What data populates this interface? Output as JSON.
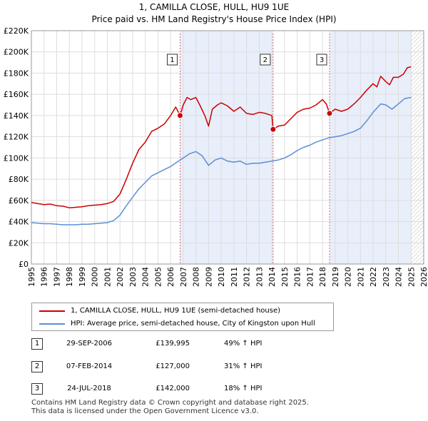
{
  "chart_data": {
    "type": "line",
    "title": "1, CAMILLA CLOSE, HULL, HU9 1UE",
    "subtitle": "Price paid vs. HM Land Registry's House Price Index (HPI)",
    "xlabel": "",
    "ylabel": "",
    "xlim": [
      1995,
      2026
    ],
    "ylim": [
      0,
      220000
    ],
    "x_ticks": [
      "1995",
      "1996",
      "1997",
      "1998",
      "1999",
      "2000",
      "2001",
      "2002",
      "2003",
      "2004",
      "2005",
      "2006",
      "2007",
      "2008",
      "2009",
      "2010",
      "2011",
      "2012",
      "2013",
      "2014",
      "2015",
      "2016",
      "2017",
      "2018",
      "2019",
      "2020",
      "2021",
      "2022",
      "2023",
      "2024",
      "2025",
      "2026"
    ],
    "y_ticks": [
      {
        "value": 0,
        "label": "£0"
      },
      {
        "value": 20000,
        "label": "£20K"
      },
      {
        "value": 40000,
        "label": "£40K"
      },
      {
        "value": 60000,
        "label": "£60K"
      },
      {
        "value": 80000,
        "label": "£80K"
      },
      {
        "value": 100000,
        "label": "£100K"
      },
      {
        "value": 120000,
        "label": "£120K"
      },
      {
        "value": 140000,
        "label": "£140K"
      },
      {
        "value": 160000,
        "label": "£160K"
      },
      {
        "value": 180000,
        "label": "£180K"
      },
      {
        "value": 200000,
        "label": "£200K"
      },
      {
        "value": 220000,
        "label": "£220K"
      }
    ],
    "grid": true,
    "shaded_periods": [
      [
        2006.75,
        2014.1
      ],
      [
        2018.56,
        2025.0
      ]
    ],
    "forecast_hatch_from": 2025.0,
    "series": [
      {
        "name": "1, CAMILLA CLOSE, HULL, HU9 1UE (semi-detached house)",
        "color": "#cc0000",
        "x": [
          1995.0,
          1995.5,
          1996.0,
          1996.5,
          1997.0,
          1997.5,
          1998.0,
          1998.5,
          1999.0,
          1999.5,
          2000.0,
          2000.5,
          2001.0,
          2001.5,
          2002.0,
          2002.5,
          2003.0,
          2003.5,
          2004.0,
          2004.5,
          2005.0,
          2005.5,
          2006.0,
          2006.4,
          2006.75,
          2007.0,
          2007.3,
          2007.6,
          2008.0,
          2008.3,
          2008.7,
          2009.0,
          2009.3,
          2009.7,
          2010.0,
          2010.5,
          2011.0,
          2011.5,
          2012.0,
          2012.5,
          2013.0,
          2013.5,
          2014.0,
          2014.1,
          2014.5,
          2015.0,
          2015.5,
          2016.0,
          2016.5,
          2017.0,
          2017.5,
          2018.0,
          2018.3,
          2018.56,
          2019.0,
          2019.5,
          2020.0,
          2020.5,
          2021.0,
          2021.5,
          2022.0,
          2022.3,
          2022.6,
          2023.0,
          2023.3,
          2023.6,
          2024.0,
          2024.4,
          2024.7,
          2025.0
        ],
        "values": [
          58000,
          57000,
          56000,
          56500,
          55000,
          54500,
          53000,
          53500,
          54000,
          55000,
          55500,
          56000,
          57000,
          59000,
          66000,
          80000,
          95000,
          108000,
          115000,
          125000,
          128000,
          132000,
          140000,
          148000,
          139995,
          150000,
          157000,
          155000,
          157000,
          150000,
          140000,
          130000,
          146000,
          150000,
          152000,
          149000,
          144000,
          148000,
          142000,
          141000,
          143000,
          142000,
          140000,
          127000,
          130000,
          131000,
          137000,
          143000,
          146000,
          147000,
          150000,
          155000,
          151000,
          142000,
          146000,
          144000,
          146000,
          151000,
          157000,
          164000,
          170000,
          167000,
          177000,
          172000,
          169000,
          176000,
          176000,
          179000,
          185000,
          186000
        ]
      },
      {
        "name": "HPI: Average price, semi-detached house, City of Kingston upon Hull",
        "color": "#5b8fd6",
        "x": [
          1995.0,
          1995.5,
          1996.0,
          1996.5,
          1997.0,
          1997.5,
          1998.0,
          1998.5,
          1999.0,
          1999.5,
          2000.0,
          2000.5,
          2001.0,
          2001.5,
          2002.0,
          2002.5,
          2003.0,
          2003.5,
          2004.0,
          2004.5,
          2005.0,
          2005.5,
          2006.0,
          2006.5,
          2007.0,
          2007.5,
          2008.0,
          2008.5,
          2009.0,
          2009.5,
          2010.0,
          2010.5,
          2011.0,
          2011.5,
          2012.0,
          2012.5,
          2013.0,
          2013.5,
          2014.0,
          2014.5,
          2015.0,
          2015.5,
          2016.0,
          2016.5,
          2017.0,
          2017.5,
          2018.0,
          2018.5,
          2019.0,
          2019.5,
          2020.0,
          2020.5,
          2021.0,
          2021.5,
          2022.0,
          2022.3,
          2022.6,
          2023.0,
          2023.5,
          2024.0,
          2024.5,
          2025.0
        ],
        "values": [
          39000,
          38500,
          38000,
          38000,
          37500,
          37000,
          37000,
          37000,
          37500,
          37500,
          38000,
          38500,
          39000,
          41000,
          46000,
          55000,
          63000,
          71000,
          77000,
          83000,
          86000,
          89000,
          92000,
          96000,
          100000,
          104000,
          106000,
          102000,
          93000,
          98000,
          100000,
          97000,
          96000,
          97000,
          94000,
          95000,
          95000,
          96000,
          97000,
          98000,
          100000,
          103000,
          107000,
          110000,
          112000,
          115000,
          117000,
          119000,
          120000,
          121000,
          123000,
          125000,
          128000,
          135000,
          143000,
          147000,
          151000,
          150000,
          146000,
          151000,
          156000,
          157000
        ]
      }
    ],
    "sales": [
      {
        "label": "1",
        "x": 2006.75,
        "value": 139995
      },
      {
        "label": "2",
        "x": 2014.1,
        "value": 127000
      },
      {
        "label": "3",
        "x": 2018.56,
        "value": 142000
      }
    ]
  },
  "legend": {
    "property_label": "1, CAMILLA CLOSE, HULL, HU9 1UE (semi-detached house)",
    "hpi_label": "HPI: Average price, semi-detached house, City of Kingston upon Hull",
    "property_color": "#cc0000",
    "hpi_color": "#5b8fd6"
  },
  "transactions": [
    {
      "num": "1",
      "date": "29-SEP-2006",
      "price": "£139,995",
      "hpi": "49% ↑ HPI"
    },
    {
      "num": "2",
      "date": "07-FEB-2014",
      "price": "£127,000",
      "hpi": "31% ↑ HPI"
    },
    {
      "num": "3",
      "date": "24-JUL-2018",
      "price": "£142,000",
      "hpi": "18% ↑ HPI"
    }
  ],
  "footer": {
    "line1": "Contains HM Land Registry data © Crown copyright and database right 2025.",
    "line2": "This data is licensed under the Open Government Licence v3.0."
  }
}
